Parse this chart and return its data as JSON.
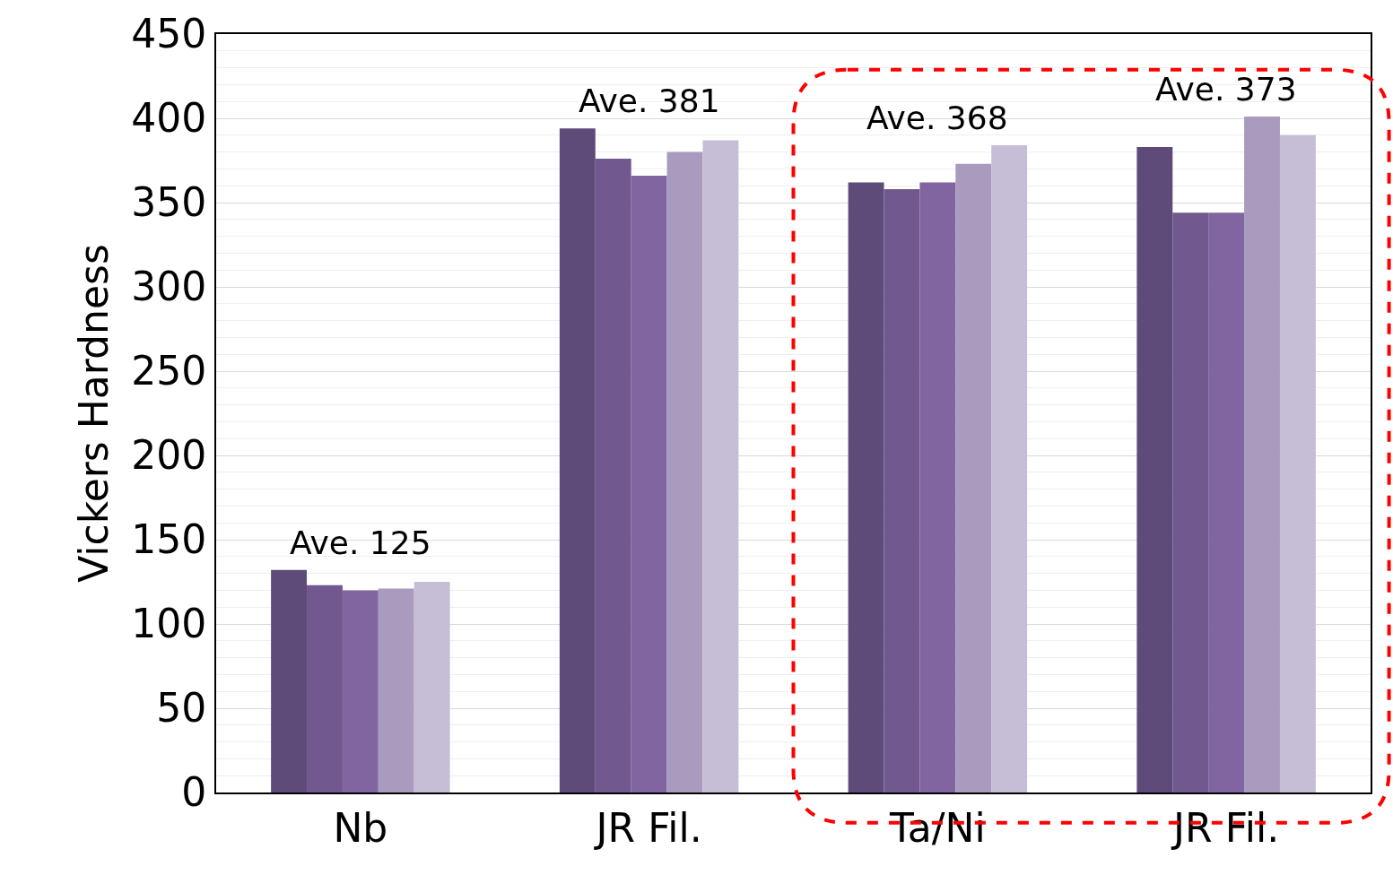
{
  "chart_data": {
    "type": "bar",
    "ylabel": "Vickers Hardness",
    "categories": [
      "Nb",
      "JR Fil.",
      "Ta/Ni",
      "JR Fil."
    ],
    "series": [
      {
        "color": "#5f4b7a",
        "values": [
          132,
          394,
          362,
          383
        ]
      },
      {
        "color": "#71598f",
        "values": [
          123,
          376,
          358,
          344
        ]
      },
      {
        "color": "#8165a0",
        "values": [
          120,
          366,
          362,
          344
        ]
      },
      {
        "color": "#a99bbe",
        "values": [
          121,
          380,
          373,
          401
        ]
      },
      {
        "color": "#c6bed6",
        "values": [
          125,
          387,
          384,
          390
        ]
      }
    ],
    "annotations": [
      "Ave. 125",
      "Ave. 381",
      "Ave. 368",
      "Ave. 373"
    ],
    "ylim": [
      0,
      450
    ],
    "yticks": [
      0,
      50,
      100,
      150,
      200,
      250,
      300,
      350,
      400,
      450
    ],
    "grid": "y",
    "legend": false
  }
}
